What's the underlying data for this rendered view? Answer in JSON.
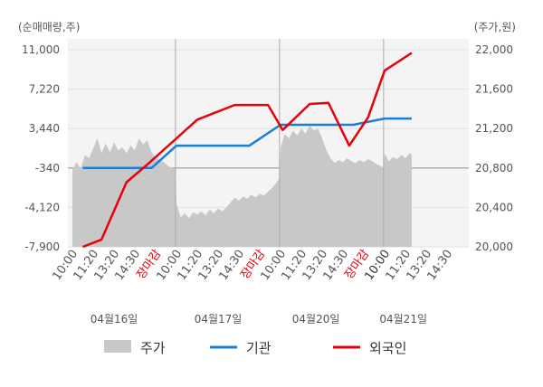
{
  "chart_data": {
    "type": "line",
    "left_unit": "(순매매량,주)",
    "right_unit": "(주가,원)",
    "left_ticks": [
      "11,000",
      "7,220",
      "3,440",
      "-340",
      "-4,120",
      "-7,900"
    ],
    "right_ticks": [
      "22,000",
      "21,600",
      "21,200",
      "20,800",
      "20,400",
      "20,000"
    ],
    "left_range": [
      -7900,
      11000
    ],
    "right_range": [
      20000,
      22000
    ],
    "x_time_labels": [
      {
        "t": "10:00",
        "i": 0,
        "c": "#555555"
      },
      {
        "t": "11:20",
        "i": 1,
        "c": "#555555"
      },
      {
        "t": "13:20",
        "i": 2,
        "c": "#555555"
      },
      {
        "t": "14:30",
        "i": 3,
        "c": "#555555"
      },
      {
        "t": "장마감",
        "i": 4,
        "c": "#e8000b"
      },
      {
        "t": "10:00",
        "i": 5,
        "c": "#555555"
      },
      {
        "t": "11:20",
        "i": 6,
        "c": "#555555"
      },
      {
        "t": "13:20",
        "i": 7,
        "c": "#555555"
      },
      {
        "t": "14:30",
        "i": 8,
        "c": "#555555"
      },
      {
        "t": "장마감",
        "i": 9,
        "c": "#e8000b"
      },
      {
        "t": "10:00",
        "i": 10,
        "c": "#555555"
      },
      {
        "t": "11:20",
        "i": 11,
        "c": "#555555"
      },
      {
        "t": "13:20",
        "i": 12,
        "c": "#555555"
      },
      {
        "t": "14:30",
        "i": 13,
        "c": "#555555"
      },
      {
        "t": "장마감",
        "i": 14,
        "c": "#e8000b"
      },
      {
        "t": "10:00",
        "i": 15,
        "c": "#333333"
      },
      {
        "t": "11:20",
        "i": 16,
        "c": "#555555"
      },
      {
        "t": "13:20",
        "i": 17,
        "c": "#555555"
      },
      {
        "t": "14:30",
        "i": 18,
        "c": "#555555"
      }
    ],
    "date_labels": [
      {
        "t": "04월16일",
        "i": 2
      },
      {
        "t": "04월17일",
        "i": 7
      },
      {
        "t": "04월20일",
        "i": 11.7
      },
      {
        "t": "04월21일",
        "i": 15.9
      }
    ],
    "session_dividers": [
      4.95,
      9.95,
      14.95
    ],
    "price_series": {
      "name": "주가",
      "color": "#c8c8c8",
      "points": [
        [
          0,
          20780
        ],
        [
          0.2,
          20860
        ],
        [
          0.4,
          20790
        ],
        [
          0.6,
          20930
        ],
        [
          0.8,
          20900
        ],
        [
          1.0,
          21000
        ],
        [
          1.2,
          21100
        ],
        [
          1.4,
          20950
        ],
        [
          1.6,
          21050
        ],
        [
          1.8,
          20960
        ],
        [
          2.0,
          21060
        ],
        [
          2.2,
          20980
        ],
        [
          2.4,
          21010
        ],
        [
          2.6,
          20950
        ],
        [
          2.8,
          21030
        ],
        [
          3.0,
          20980
        ],
        [
          3.2,
          21100
        ],
        [
          3.4,
          21040
        ],
        [
          3.6,
          21080
        ],
        [
          3.8,
          20960
        ],
        [
          4.0,
          20900
        ],
        [
          4.2,
          20880
        ],
        [
          4.4,
          20860
        ],
        [
          4.6,
          20820
        ],
        [
          4.8,
          20800
        ],
        [
          4.95,
          20790
        ],
        [
          5.0,
          20440
        ],
        [
          5.2,
          20300
        ],
        [
          5.4,
          20340
        ],
        [
          5.6,
          20290
        ],
        [
          5.8,
          20350
        ],
        [
          6.0,
          20330
        ],
        [
          6.2,
          20360
        ],
        [
          6.4,
          20320
        ],
        [
          6.6,
          20380
        ],
        [
          6.8,
          20340
        ],
        [
          7.0,
          20390
        ],
        [
          7.2,
          20360
        ],
        [
          7.4,
          20400
        ],
        [
          7.6,
          20450
        ],
        [
          7.8,
          20500
        ],
        [
          8.0,
          20470
        ],
        [
          8.2,
          20510
        ],
        [
          8.4,
          20490
        ],
        [
          8.6,
          20530
        ],
        [
          8.8,
          20500
        ],
        [
          9.0,
          20540
        ],
        [
          9.2,
          20520
        ],
        [
          9.4,
          20560
        ],
        [
          9.6,
          20600
        ],
        [
          9.8,
          20650
        ],
        [
          9.95,
          20700
        ],
        [
          10.0,
          21000
        ],
        [
          10.2,
          21150
        ],
        [
          10.4,
          21100
        ],
        [
          10.6,
          21180
        ],
        [
          10.8,
          21130
        ],
        [
          11.0,
          21200
        ],
        [
          11.2,
          21150
        ],
        [
          11.4,
          21230
        ],
        [
          11.6,
          21180
        ],
        [
          11.8,
          21200
        ],
        [
          12.0,
          21100
        ],
        [
          12.2,
          20980
        ],
        [
          12.4,
          20900
        ],
        [
          12.6,
          20850
        ],
        [
          12.8,
          20880
        ],
        [
          13.0,
          20860
        ],
        [
          13.2,
          20900
        ],
        [
          13.4,
          20870
        ],
        [
          13.6,
          20850
        ],
        [
          13.8,
          20880
        ],
        [
          14.0,
          20860
        ],
        [
          14.2,
          20890
        ],
        [
          14.4,
          20870
        ],
        [
          14.6,
          20840
        ],
        [
          14.8,
          20820
        ],
        [
          14.95,
          20800
        ],
        [
          15.0,
          20950
        ],
        [
          15.2,
          20870
        ],
        [
          15.4,
          20910
        ],
        [
          15.6,
          20890
        ],
        [
          15.8,
          20930
        ],
        [
          16.0,
          20900
        ],
        [
          16.2,
          20950
        ],
        [
          16.3,
          20940
        ]
      ]
    },
    "institution_series": {
      "name": "기관",
      "color": "#1a7ed6",
      "points": [
        [
          0.5,
          -340
        ],
        [
          3.8,
          -340
        ],
        [
          5.0,
          1800
        ],
        [
          8.5,
          1800
        ],
        [
          10.0,
          3800
        ],
        [
          13.5,
          3800
        ],
        [
          15.0,
          4400
        ],
        [
          16.3,
          4400
        ]
      ]
    },
    "foreign_series": {
      "name": "외국인",
      "color": "#e8000b",
      "points": [
        [
          0.5,
          -7900
        ],
        [
          1.4,
          -7200
        ],
        [
          2.6,
          -1700
        ],
        [
          3.6,
          0
        ],
        [
          5.0,
          2500
        ],
        [
          6.0,
          4300
        ],
        [
          7.8,
          5700
        ],
        [
          9.4,
          5700
        ],
        [
          10.1,
          3300
        ],
        [
          11.4,
          5800
        ],
        [
          12.3,
          5900
        ],
        [
          13.3,
          1800
        ],
        [
          14.2,
          4500
        ],
        [
          15.0,
          9000
        ],
        [
          16.3,
          10700
        ]
      ]
    }
  },
  "legend": [
    {
      "label": "주가",
      "color": "#c8c8c8",
      "kind": "box"
    },
    {
      "label": "기관",
      "color": "#1a7ed6",
      "kind": "line"
    },
    {
      "label": "외국인",
      "color": "#e8000b",
      "kind": "line"
    }
  ]
}
